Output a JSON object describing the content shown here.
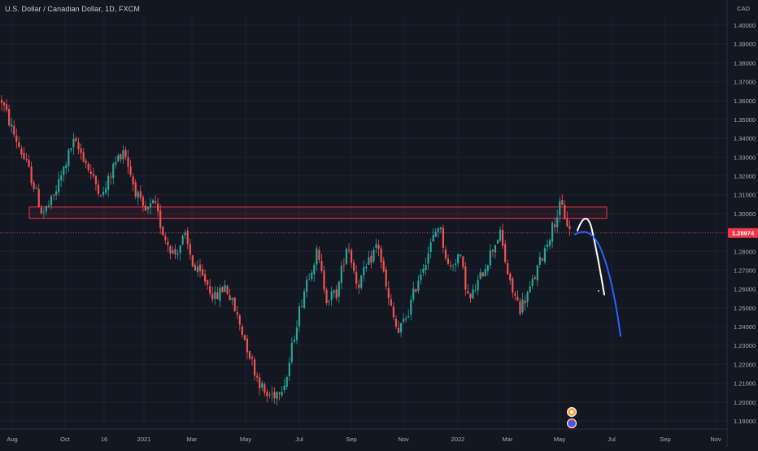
{
  "header": {
    "title": "U.S. Dollar / Canadian Dollar, 1D, FXCM",
    "currency": "CAD"
  },
  "colors": {
    "background": "#131722",
    "grid": "#1e222d",
    "up": "#26a69a",
    "down": "#ef5350",
    "zone": "#f23645",
    "price_line": "#f23645",
    "badge": "#f23645",
    "white_path": "#ffffff",
    "blue_path": "#2962ff"
  },
  "chart_data": {
    "type": "candlestick",
    "symbol": "USDCAD",
    "timeframe": "1D",
    "source": "FXCM",
    "ylim": [
      1.185,
      1.405
    ],
    "y_ticks": [
      "1.40000",
      "1.39000",
      "1.38000",
      "1.37000",
      "1.36000",
      "1.35000",
      "1.34000",
      "1.33000",
      "1.32000",
      "1.31000",
      "1.30000",
      "1.29000",
      "1.28000",
      "1.27000",
      "1.26000",
      "1.25000",
      "1.24000",
      "1.23000",
      "1.22000",
      "1.21000",
      "1.20000",
      "1.19000"
    ],
    "x_ticks": [
      "Aug",
      "Oct",
      "16",
      "2021",
      "Mar",
      "May",
      "Jul",
      "Sep",
      "Nov",
      "2022",
      "Mar",
      "May",
      "Jul",
      "Sep",
      "Nov"
    ],
    "last_price": "1.28974",
    "resistance_zone": {
      "low": 1.2975,
      "high": 1.3035,
      "start": "Aug",
      "end": "Jun 2022"
    },
    "price_path_keypoints": [
      [
        "Aug",
        1.36
      ],
      [
        "Aug",
        1.345
      ],
      [
        "Aug",
        1.332
      ],
      [
        "Aug",
        1.318
      ],
      [
        "Aug",
        1.3
      ],
      [
        "Aug",
        1.307
      ],
      [
        "Aug",
        1.322
      ],
      [
        "Oct",
        1.338
      ],
      [
        "Oct",
        1.331
      ],
      [
        "Oct",
        1.318
      ],
      [
        "Oct",
        1.31
      ],
      [
        "Oct",
        1.325
      ],
      [
        "16",
        1.335
      ],
      [
        "16",
        1.315
      ],
      [
        "16",
        1.3
      ],
      [
        "16",
        1.305
      ],
      [
        "16",
        1.288
      ],
      [
        "2021",
        1.278
      ],
      [
        "2021",
        1.288
      ],
      [
        "2021",
        1.27
      ],
      [
        "2021",
        1.265
      ],
      [
        "Mar",
        1.255
      ],
      [
        "Mar",
        1.262
      ],
      [
        "Mar",
        1.248
      ],
      [
        "May",
        1.232
      ],
      [
        "May",
        1.215
      ],
      [
        "May",
        1.203
      ],
      [
        "May",
        1.205
      ],
      [
        "May",
        1.212
      ],
      [
        "Jul",
        1.242
      ],
      [
        "Jul",
        1.265
      ],
      [
        "Jul",
        1.279
      ],
      [
        "Jul",
        1.255
      ],
      [
        "Jul",
        1.258
      ],
      [
        "Sep",
        1.285
      ],
      [
        "Sep",
        1.262
      ],
      [
        "Sep",
        1.272
      ],
      [
        "Sep",
        1.285
      ],
      [
        "Nov",
        1.255
      ],
      [
        "Nov",
        1.236
      ],
      [
        "Nov",
        1.248
      ],
      [
        "Nov",
        1.266
      ],
      [
        "2022",
        1.28
      ],
      [
        "2022",
        1.295
      ],
      [
        "2022",
        1.27
      ],
      [
        "2022",
        1.279
      ],
      [
        "Mar",
        1.253
      ],
      [
        "Mar",
        1.265
      ],
      [
        "Mar",
        1.278
      ],
      [
        "Mar",
        1.29
      ],
      [
        "Mar",
        1.262
      ],
      [
        "Mar",
        1.25
      ],
      [
        "May",
        1.26
      ],
      [
        "May",
        1.275
      ],
      [
        "May",
        1.29
      ],
      [
        "May",
        1.305
      ],
      [
        "May",
        1.289
      ]
    ],
    "event_markers": [
      "event-marker",
      "us-flag-marker"
    ]
  }
}
